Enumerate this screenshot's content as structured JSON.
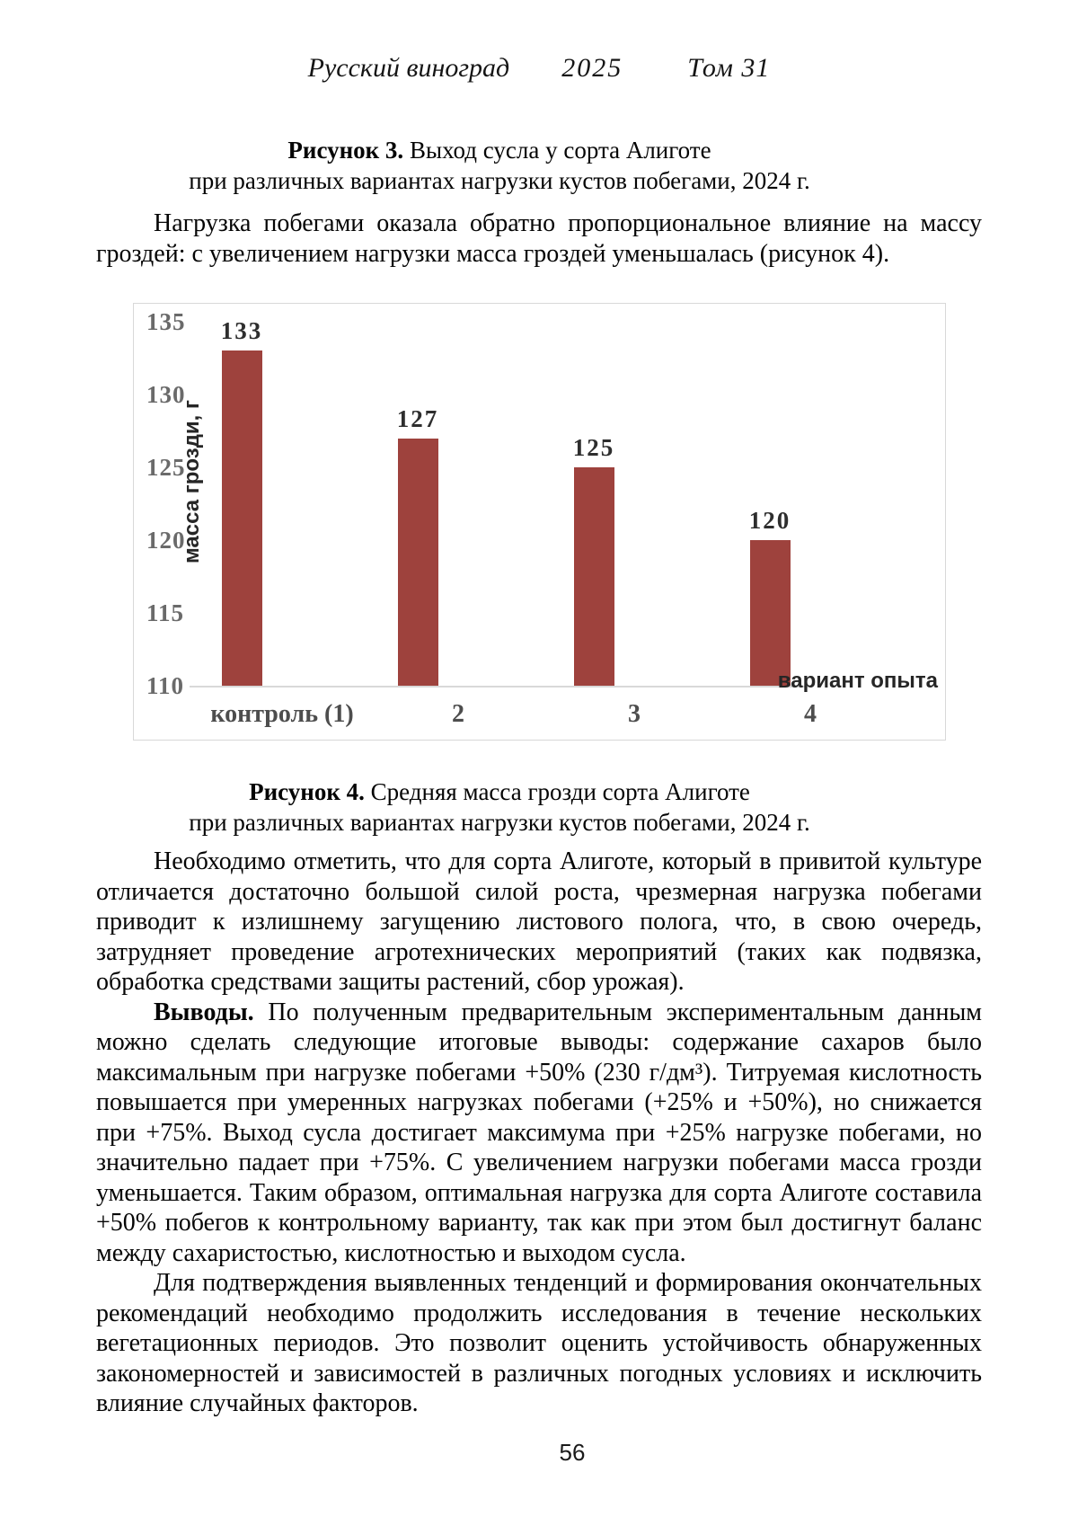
{
  "header": {
    "journal": "Русский виноград",
    "year": "2025",
    "volume": "Том 31"
  },
  "figure3": {
    "label": "Рисунок 3.",
    "title": "Выход сусла у сорта Алиготе",
    "subtitle": "при различных вариантах нагрузки кустов побегами, 2024 г."
  },
  "figure4": {
    "label": "Рисунок 4.",
    "title": "Средняя масса грозди сорта Алиготе",
    "subtitle": "при различных вариантах нагрузки кустов побегами, 2024 г."
  },
  "paragraphs": {
    "intro": "Нагрузка побегами оказала обратно пропорциональное влияние на массу гроздей: с увеличением нагрузки масса гроздей уменьшалась (рисунок 4).",
    "growth": "Необходимо отметить, что для сорта Алиготе, который в привитой культуре отличается достаточно большой силой роста, чрезмерная нагрузка побегами приводит к излишнему загущению листового полога, что, в свою очередь, затрудняет проведение агротехнических мероприятий (таких как подвязка, обработка средствами защиты растений, сбор урожая).",
    "conclusions_lead": "Выводы.",
    "conclusions_text": "По полученным предварительным экспериментальным данным можно сделать следующие итоговые выводы: содержание сахаров было максимальным при нагрузке побегами +50% (230 г/дм³). Титруемая кислотность повышается при умеренных нагрузках побегами (+25% и +50%), но снижается при +75%. Выход сусла достигает максимума при +25% нагрузке побегами, но значительно падает при +75%. С увеличением нагрузки побегами масса грозди уменьшается. Таким образом, оптимальная нагрузка для сорта Алиготе составила +50% побегов к контрольному варианту, так как при этом был достигнут баланс между сахаристостью, кислотностью и выходом сусла.",
    "future": "Для подтверждения выявленных тенденций и формирования окончательных рекомендаций необходимо продолжить исследования в течение нескольких вегетационных периодов. Это позволит оценить устойчивость обнаруженных закономерностей и зависимостей в различных погодных условиях и исключить влияние случайных факторов."
  },
  "page_number": "56",
  "chart_data": {
    "type": "bar",
    "categories": [
      "контроль (1)",
      "2",
      "3",
      "4"
    ],
    "values": [
      133,
      127,
      125,
      120
    ],
    "title": "",
    "xlabel": "вариант опыта",
    "ylabel": "масса грозди, г",
    "ylim": [
      110,
      135
    ],
    "yticks": [
      135,
      130,
      125,
      120,
      115,
      110
    ],
    "bar_color": "#9E423D",
    "axis_color": "#d9d9d9",
    "grid": false,
    "legend": "none"
  }
}
